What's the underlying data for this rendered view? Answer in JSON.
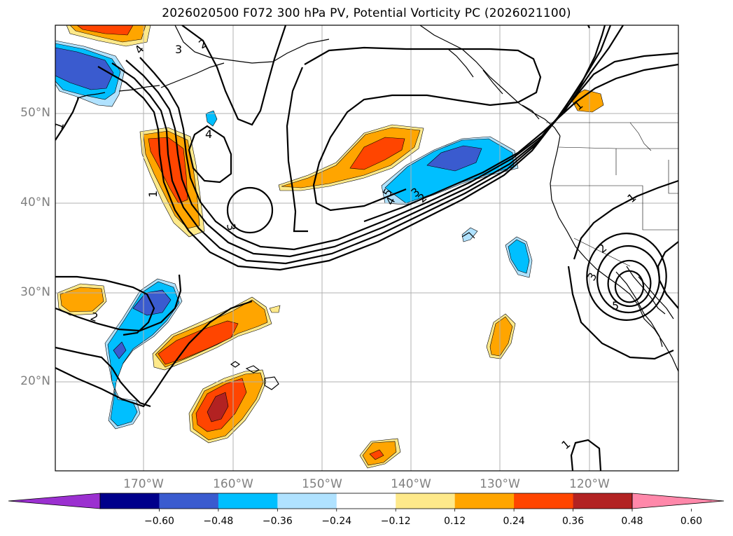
{
  "title": "2026020500 F072 300 hPa PV, Potential Vorticity PC (2026021100)",
  "lat_labels": [
    "50°N",
    "40°N",
    "30°N",
    "20°N"
  ],
  "lon_labels": [
    "170°W",
    "160°W",
    "150°W",
    "140°W",
    "130°W",
    "120°W"
  ],
  "contour_labels": [
    "1",
    "2",
    "3",
    "4",
    "5"
  ],
  "colorbar": {
    "ticks": [
      "−0.60",
      "−0.48",
      "−0.36",
      "−0.24",
      "−0.12",
      "0.12",
      "0.24",
      "0.36",
      "0.48",
      "0.60"
    ],
    "colors": [
      "#9b30d0",
      "#00008b",
      "#3a5bcf",
      "#00bfff",
      "#b0e2ff",
      "#ffffff",
      "#fee98a",
      "#ffa500",
      "#ff4500",
      "#b22222",
      "#ff88aa"
    ]
  },
  "shading_colors": {
    "neg_strong": "#3a5bcf",
    "neg_mid": "#00bfff",
    "neg_weak": "#b0e2ff",
    "pos_weak": "#fee98a",
    "pos_mid": "#ffa500",
    "pos_strong": "#ff4500",
    "pos_max": "#b22222"
  }
}
